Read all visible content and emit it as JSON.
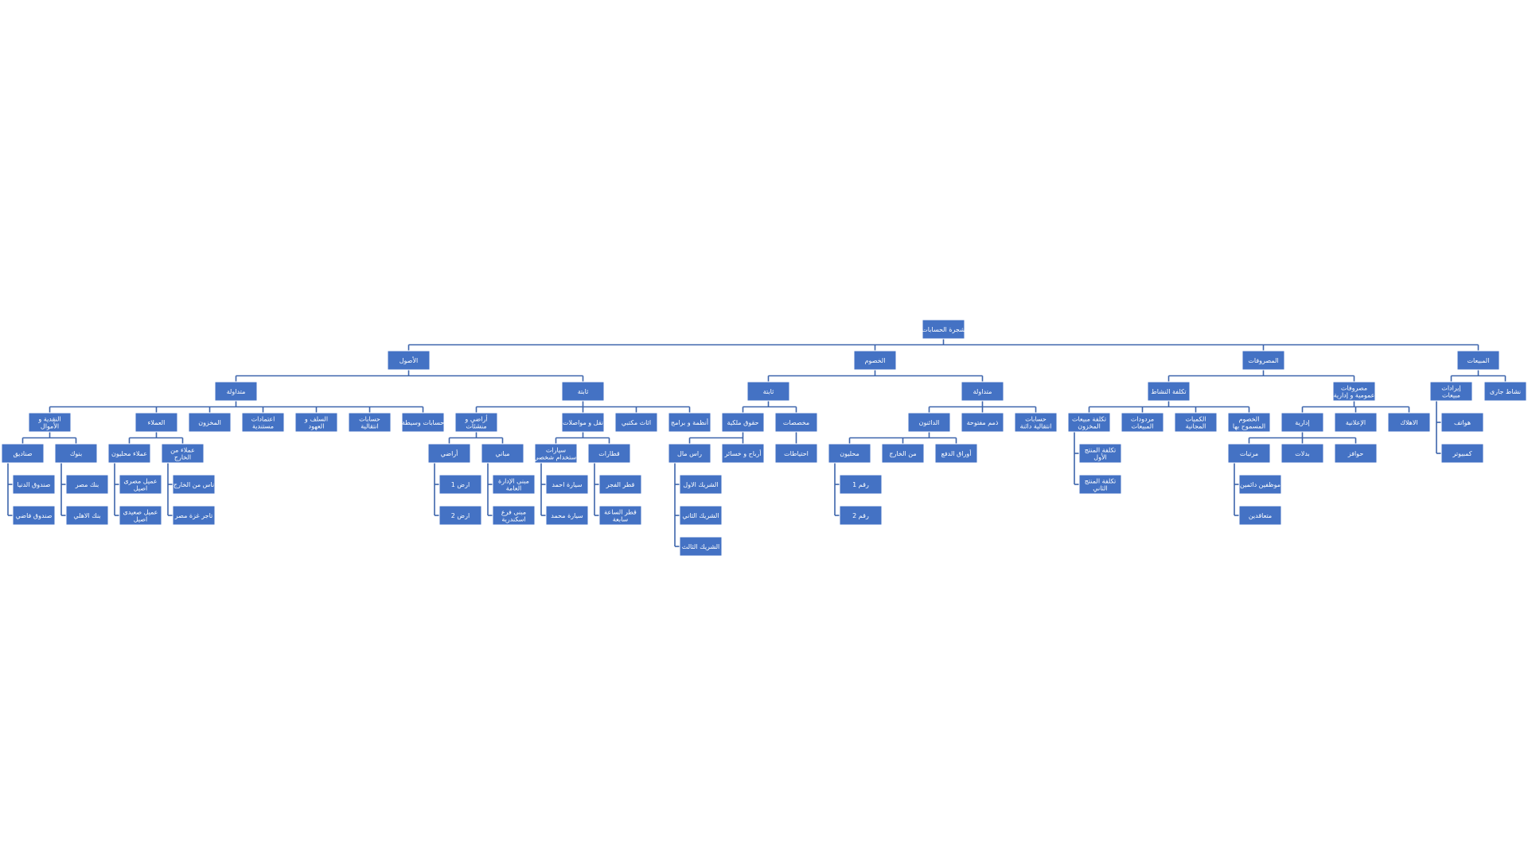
{
  "diagram": {
    "title": "شجرة الحسابات",
    "nodes": [
      {
        "id": "root",
        "label": "شجرة الحسابات"
      },
      {
        "id": "assets",
        "parent": "root",
        "label": "الأصول"
      },
      {
        "id": "liab",
        "parent": "root",
        "label": "الخصوم"
      },
      {
        "id": "exp",
        "parent": "root",
        "label": "المصروفات"
      },
      {
        "id": "sales",
        "parent": "root",
        "label": "المبيعات"
      },
      {
        "id": "a_cur",
        "parent": "assets",
        "label": "متداولة"
      },
      {
        "id": "a_fix",
        "parent": "assets",
        "label": "ثابتة"
      },
      {
        "id": "l_fix",
        "parent": "liab",
        "label": "ثابتة"
      },
      {
        "id": "l_cur",
        "parent": "liab",
        "label": "متداولة"
      },
      {
        "id": "e_act",
        "parent": "exp",
        "label": "تكلفة النشاط"
      },
      {
        "id": "e_gen",
        "parent": "exp",
        "label": "مصروفات عمومية و إدارية"
      },
      {
        "id": "s_rev",
        "parent": "sales",
        "label": "إيرادات مبيعات"
      },
      {
        "id": "s_cur",
        "parent": "sales",
        "label": "نشاط جارى"
      },
      {
        "id": "ac_cash",
        "parent": "a_cur",
        "label": "النقدية و الأموال"
      },
      {
        "id": "ac_cust",
        "parent": "a_cur",
        "label": "العملاء"
      },
      {
        "id": "ac_inv",
        "parent": "a_cur",
        "label": "المخزون"
      },
      {
        "id": "ac_credit",
        "parent": "a_cur",
        "label": "اعتمادات مستندية"
      },
      {
        "id": "ac_loans",
        "parent": "a_cur",
        "label": "السلف و العهود"
      },
      {
        "id": "ac_trans",
        "parent": "a_cur",
        "label": "حسابات انتقالية"
      },
      {
        "id": "ac_inter",
        "parent": "a_cur",
        "label": "حسابات وسيطة"
      },
      {
        "id": "af_land",
        "parent": "a_fix",
        "label": "أراضي و منشئات"
      },
      {
        "id": "af_trans",
        "parent": "a_fix",
        "label": "نقل و مواصلات"
      },
      {
        "id": "af_furn",
        "parent": "a_fix",
        "label": "اثاث مكتبي"
      },
      {
        "id": "af_sys",
        "parent": "a_fix",
        "label": "أنظمة و برامج"
      },
      {
        "id": "lf_equity",
        "parent": "l_fix",
        "label": "حقوق ملكية"
      },
      {
        "id": "lf_prov",
        "parent": "l_fix",
        "label": "مخصصات"
      },
      {
        "id": "lc_creditors",
        "parent": "l_cur",
        "label": "الدائنون"
      },
      {
        "id": "lc_open",
        "parent": "l_cur",
        "label": "ذمم مفتوحة"
      },
      {
        "id": "lc_trans",
        "parent": "l_cur",
        "label": "حسابات انتقالية دائنة"
      },
      {
        "id": "ea_cost",
        "parent": "e_act",
        "label": "تكلفة مبيعات المخزون"
      },
      {
        "id": "ea_ret",
        "parent": "e_act",
        "label": "مردودات المبيعات"
      },
      {
        "id": "ea_free",
        "parent": "e_act",
        "label": "الكميات المجانية"
      },
      {
        "id": "ea_disc",
        "parent": "e_act",
        "label": "الخصوم المسموح بها"
      },
      {
        "id": "eg_admin",
        "parent": "e_gen",
        "label": "إدارية"
      },
      {
        "id": "eg_adv",
        "parent": "e_gen",
        "label": "الإعلانية"
      },
      {
        "id": "eg_dep",
        "parent": "e_gen",
        "label": "الاهلاك"
      },
      {
        "id": "sr_phones",
        "parent": "s_rev",
        "label": "هواتف"
      },
      {
        "id": "sr_comp",
        "parent": "s_rev",
        "label": "كمبيوتر"
      },
      {
        "id": "cash_safe",
        "parent": "ac_cash",
        "label": "صناديق"
      },
      {
        "id": "cash_bank",
        "parent": "ac_cash",
        "label": "بنوك"
      },
      {
        "id": "cust_loc",
        "parent": "ac_cust",
        "label": "عملاء محليون"
      },
      {
        "id": "cust_ext",
        "parent": "ac_cust",
        "label": "عملاء من الخارج"
      },
      {
        "id": "land_l",
        "parent": "af_land",
        "label": "أراضي"
      },
      {
        "id": "land_b",
        "parent": "af_land",
        "label": "مباني"
      },
      {
        "id": "tr_cars",
        "parent": "af_trans",
        "label": "سيارات استخدام شخصي"
      },
      {
        "id": "tr_trains",
        "parent": "af_trans",
        "label": "قطارات"
      },
      {
        "id": "eq_cap",
        "parent": "lf_equity",
        "label": "راس مال"
      },
      {
        "id": "eq_pl",
        "parent": "lf_equity",
        "label": "أرباح و خسائر"
      },
      {
        "id": "pr_res",
        "parent": "lf_prov",
        "label": "احتياطات"
      },
      {
        "id": "cr_local",
        "parent": "lc_creditors",
        "label": "محليون"
      },
      {
        "id": "cr_abroad",
        "parent": "lc_creditors",
        "label": "من الخارج"
      },
      {
        "id": "cr_notes",
        "parent": "lc_creditors",
        "label": "أوراق الدفع"
      },
      {
        "id": "adm_sal",
        "parent": "eg_admin",
        "label": "مرتبات"
      },
      {
        "id": "adm_allow",
        "parent": "eg_admin",
        "label": "بدلات"
      },
      {
        "id": "adm_inc",
        "parent": "eg_admin",
        "label": "حوافز"
      },
      {
        "id": "safe_w",
        "parent": "cash_safe",
        "label": "صندوق الدنيا"
      },
      {
        "id": "safe_f",
        "parent": "cash_safe",
        "label": "صندوق فاضي"
      },
      {
        "id": "bank_m",
        "parent": "cash_bank",
        "label": "بنك مصر"
      },
      {
        "id": "bank_a",
        "parent": "cash_bank",
        "label": "بنك الاهلي"
      },
      {
        "id": "cl_1",
        "parent": "cust_loc",
        "label": "عميل مصرى اصيل"
      },
      {
        "id": "cl_2",
        "parent": "cust_loc",
        "label": "عميل صعيدى اصيل"
      },
      {
        "id": "ce_1",
        "parent": "cust_ext",
        "label": "ناس من الخارج"
      },
      {
        "id": "ce_2",
        "parent": "cust_ext",
        "label": "تاجر غزة مصر"
      },
      {
        "id": "ll_1",
        "parent": "land_l",
        "label": "ارض 1"
      },
      {
        "id": "ll_2",
        "parent": "land_l",
        "label": "ارض 2"
      },
      {
        "id": "lb_1",
        "parent": "land_b",
        "label": "مبنى الإدارة العامة"
      },
      {
        "id": "lb_2",
        "parent": "land_b",
        "label": "مبنى فرع اسكندرية"
      },
      {
        "id": "car_1",
        "parent": "tr_cars",
        "label": "سيارة احمد"
      },
      {
        "id": "car_2",
        "parent": "tr_cars",
        "label": "سيارة محمد"
      },
      {
        "id": "tr_1",
        "parent": "tr_trains",
        "label": "قطر الفجر"
      },
      {
        "id": "tr_2",
        "parent": "tr_trains",
        "label": "قطر الساعة سابعة"
      },
      {
        "id": "cap_1",
        "parent": "eq_cap",
        "label": "الشريك الاول"
      },
      {
        "id": "cap_2",
        "parent": "eq_cap",
        "label": "الشريك الثاني"
      },
      {
        "id": "cap_3",
        "parent": "eq_cap",
        "label": "الشريك الثالث"
      },
      {
        "id": "crl_1",
        "parent": "cr_local",
        "label": "رقم 1"
      },
      {
        "id": "crl_2",
        "parent": "cr_local",
        "label": "رقم 2"
      },
      {
        "id": "cost_1",
        "parent": "ea_cost",
        "label": "تكلفة المنتج الأول"
      },
      {
        "id": "cost_2",
        "parent": "ea_cost",
        "label": "تكلفة المنتج الثاني"
      },
      {
        "id": "sal_1",
        "parent": "adm_sal",
        "label": "موظفين دائمين"
      },
      {
        "id": "sal_2",
        "parent": "adm_sal",
        "label": "متعاقدين"
      }
    ]
  }
}
